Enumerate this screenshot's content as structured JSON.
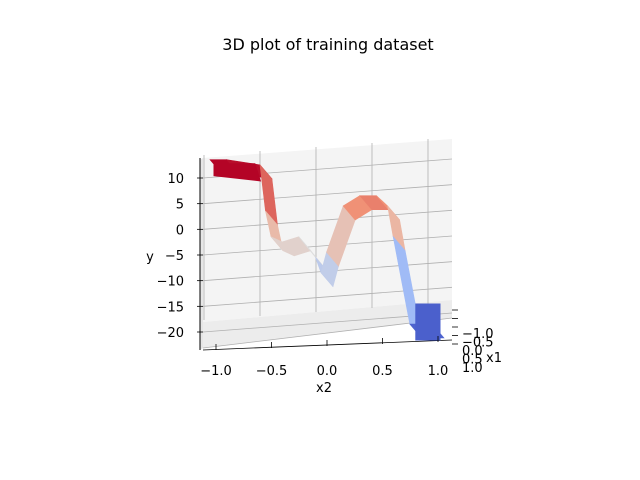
{
  "chart_data": {
    "type": "surface3d",
    "title": "3D plot of training dataset",
    "xlabel": "x2",
    "ylabel": "x1",
    "zlabel": "y",
    "x_ticks": [
      "−1.0",
      "−0.5",
      "0.0",
      "0.5",
      "1.0"
    ],
    "y_ticks": [
      "−1.0",
      "−0.5",
      "0.0",
      "0.5",
      "1.0"
    ],
    "z_ticks": [
      "−20",
      "−15",
      "−10",
      "−5",
      "0",
      "5",
      "10"
    ],
    "x_range": [
      -1.0,
      1.0
    ],
    "y_range": [
      -1.0,
      1.0
    ],
    "z_range": [
      -22,
      12
    ],
    "colormap": "coolwarm",
    "grid": true,
    "view": "side view along x1",
    "profile": {
      "x2": [
        -1.0,
        -0.85,
        -0.55,
        -0.5,
        -0.45,
        -0.35,
        -0.2,
        -0.05,
        0.0,
        0.05,
        0.2,
        0.35,
        0.5,
        0.6,
        0.65,
        0.8,
        1.0
      ],
      "y": [
        12,
        12,
        11,
        2,
        -3,
        -4,
        -3,
        -7,
        -10,
        -6,
        3,
        5,
        5,
        3,
        -3,
        -20,
        -20
      ]
    }
  }
}
